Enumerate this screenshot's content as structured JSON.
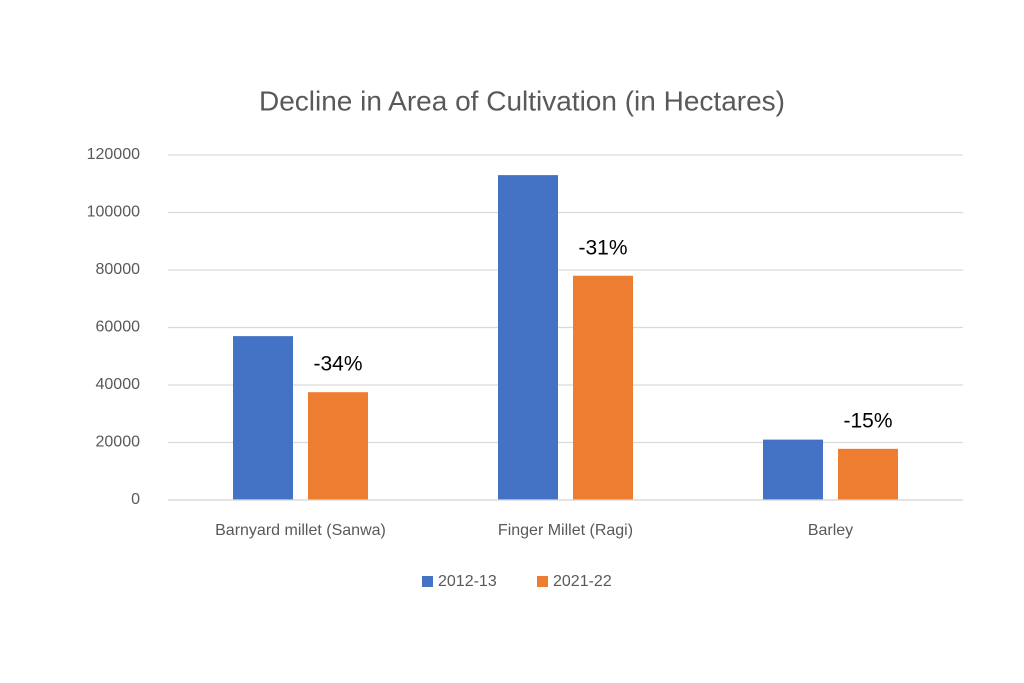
{
  "chart_data": {
    "type": "bar",
    "title": "Decline in Area of Cultivation (in Hectares)",
    "categories": [
      "Barnyard millet (Sanwa)",
      "Finger Millet (Ragi)",
      "Barley"
    ],
    "series": [
      {
        "name": "2012-13",
        "color": "#4472c4",
        "values": [
          57000,
          113000,
          21000
        ]
      },
      {
        "name": "2021-22",
        "color": "#ed7d31",
        "values": [
          37500,
          78000,
          17800
        ]
      }
    ],
    "annotations": [
      "-34%",
      "-31%",
      "-15%"
    ],
    "ylim": [
      0,
      120000
    ],
    "yticks": [
      0,
      20000,
      40000,
      60000,
      80000,
      100000,
      120000
    ],
    "grid": true,
    "legend": "bottom"
  }
}
